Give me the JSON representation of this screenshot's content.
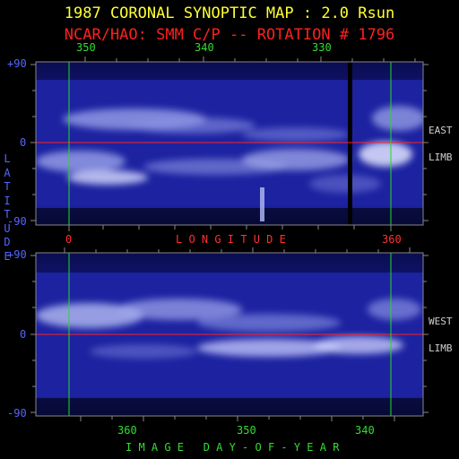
{
  "header": {
    "title": "1987 CORONAL SYNOPTIC MAP : 2.0 Rsun",
    "subtitle": "NCAR/HAO: SMM C/P -- ROTATION # 1796"
  },
  "top_map": {
    "top_axis_ticks": [
      "350",
      "340",
      "330"
    ],
    "lat_ticks": [
      "+90",
      "0",
      "-90"
    ],
    "bottom_axis_ticks": [
      "0",
      "360"
    ],
    "side_label_1": "EAST",
    "side_label_2": "LIMB"
  },
  "middle_axis_label": "L O N G I T U D E",
  "vertical_axis_label": [
    "L",
    "A",
    "T",
    "I",
    "T",
    "U",
    "D",
    "E"
  ],
  "bottom_map": {
    "lat_ticks": [
      "+90",
      "0",
      "-90"
    ],
    "bottom_axis_ticks": [
      "360",
      "350",
      "340"
    ],
    "side_label_1": "WEST",
    "side_label_2": "LIMB"
  },
  "bottom_axis_label": "I M A G E   D A Y - O F - Y E A R",
  "colors": {
    "title": "#ffff33",
    "subtitle": "#ff2020",
    "map_bg": "#1a1f9a",
    "equator": "#ff2020",
    "meridian": "#22dd22"
  }
}
